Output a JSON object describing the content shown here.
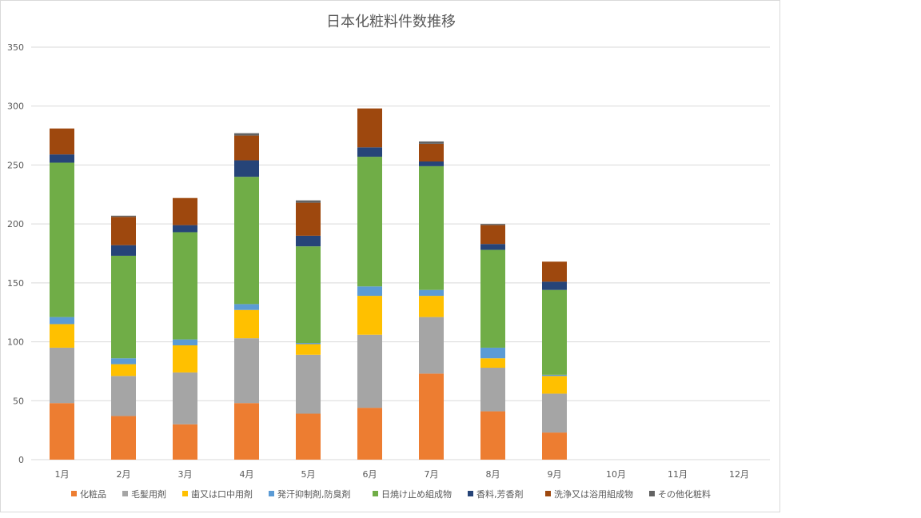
{
  "chart_data": {
    "type": "bar",
    "stacked": true,
    "title": "日本化粧料件数推移",
    "categories": [
      "1月",
      "2月",
      "3月",
      "4月",
      "5月",
      "6月",
      "7月",
      "8月",
      "9月",
      "10月",
      "11月",
      "12月"
    ],
    "ylim": [
      0,
      350
    ],
    "yticks": [
      0,
      50,
      100,
      150,
      200,
      250,
      300,
      350
    ],
    "grid": true,
    "legend_position": "bottom",
    "series": [
      {
        "name": "化粧品",
        "color": "#ED7D31",
        "values": [
          48,
          37,
          30,
          48,
          39,
          44,
          73,
          41,
          23,
          null,
          null,
          null
        ]
      },
      {
        "name": "毛髪用剤",
        "color": "#A5A5A5",
        "values": [
          47,
          34,
          44,
          55,
          50,
          62,
          48,
          37,
          33,
          null,
          null,
          null
        ]
      },
      {
        "name": "歯又は口中用剤",
        "color": "#FFC000",
        "values": [
          20,
          10,
          23,
          24,
          9,
          33,
          18,
          8,
          15,
          null,
          null,
          null
        ]
      },
      {
        "name": "発汗抑制剤,防臭剤",
        "color": "#5B9BD5",
        "values": [
          6,
          5,
          5,
          5,
          1,
          8,
          5,
          9,
          1,
          null,
          null,
          null
        ]
      },
      {
        "name": "日焼け止め組成物",
        "color": "#70AD47",
        "values": [
          131,
          87,
          91,
          108,
          82,
          110,
          105,
          83,
          72,
          null,
          null,
          null
        ]
      },
      {
        "name": "香料,芳香剤",
        "color": "#264478",
        "values": [
          7,
          9,
          6,
          14,
          9,
          8,
          4,
          5,
          7,
          null,
          null,
          null
        ]
      },
      {
        "name": "洗浄又は浴用組成物",
        "color": "#9E480E",
        "values": [
          22,
          24,
          23,
          21,
          28,
          33,
          15,
          16,
          17,
          null,
          null,
          null
        ]
      },
      {
        "name": "その他化粧料",
        "color": "#636363",
        "values": [
          0,
          1,
          0,
          2,
          2,
          0,
          2,
          1,
          0,
          null,
          null,
          null
        ]
      }
    ]
  }
}
